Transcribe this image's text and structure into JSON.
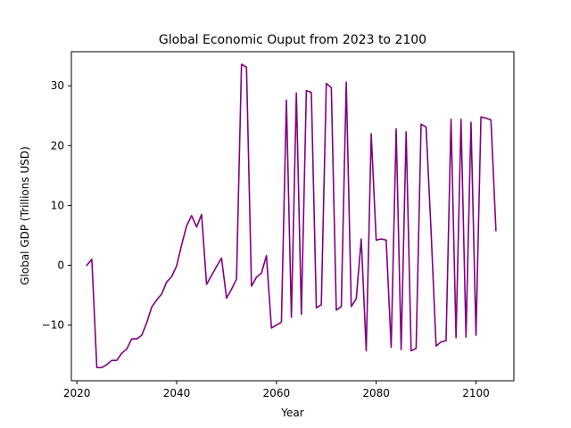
{
  "chart_data": {
    "type": "line",
    "title": "Global Economic Ouput from 2023 to 2100",
    "xlabel": "Year",
    "ylabel": "Global GDP (Trillions USD)",
    "xlim": [
      2018.9,
      2107.6
    ],
    "ylim": [
      -19.3,
      35.7
    ],
    "xticks": [
      2020,
      2040,
      2060,
      2080,
      2100
    ],
    "yticks": [
      -10,
      0,
      10,
      20,
      30
    ],
    "ytick_labels": [
      "−10",
      "0",
      "10",
      "20",
      "30"
    ],
    "grid": false,
    "series": [
      {
        "color": "#800080",
        "x": [
          2022,
          2023,
          2024,
          2025,
          2026,
          2027,
          2028,
          2029,
          2030,
          2031,
          2032,
          2033,
          2034,
          2035,
          2036,
          2037,
          2038,
          2039,
          2040,
          2041,
          2042,
          2043,
          2044,
          2045,
          2046,
          2047,
          2048,
          2049,
          2050,
          2051,
          2052,
          2053,
          2054,
          2055,
          2056,
          2057,
          2058,
          2059,
          2060,
          2061,
          2062,
          2063,
          2064,
          2065,
          2066,
          2067,
          2068,
          2069,
          2070,
          2071,
          2072,
          2073,
          2074,
          2075,
          2076,
          2077,
          2078,
          2079,
          2080,
          2081,
          2082,
          2083,
          2084,
          2085,
          2086,
          2087,
          2088,
          2089,
          2090,
          2091,
          2092,
          2093,
          2094,
          2095,
          2096,
          2097,
          2098,
          2099,
          2100,
          2101,
          2102,
          2103,
          2104
        ],
        "y": [
          0.0,
          1.0,
          -17.1,
          -17.1,
          -16.6,
          -15.9,
          -15.9,
          -14.7,
          -14.0,
          -12.3,
          -12.3,
          -11.7,
          -9.6,
          -7.0,
          -5.8,
          -4.8,
          -2.8,
          -1.9,
          -0.1,
          3.4,
          6.6,
          8.3,
          6.4,
          8.5,
          -3.2,
          -1.7,
          -0.2,
          1.2,
          -5.5,
          -4.0,
          -2.3,
          33.6,
          33.1,
          -3.5,
          -2.0,
          -1.3,
          1.6,
          -10.5,
          -10.0,
          -9.5,
          27.6,
          -8.7,
          28.8,
          -8.2,
          29.2,
          28.9,
          -7.1,
          -6.6,
          30.4,
          29.7,
          -7.5,
          -6.9,
          30.6,
          -6.9,
          -5.6,
          4.4,
          -14.3,
          22.0,
          4.2,
          4.4,
          4.2,
          -13.7,
          22.8,
          -14.1,
          22.3,
          -14.3,
          -13.9,
          23.6,
          23.1,
          5.7,
          -13.5,
          -12.8,
          -12.6,
          24.4,
          -12.1,
          24.4,
          -12.0,
          23.9,
          -11.7,
          24.8,
          24.6,
          24.3,
          5.8
        ]
      }
    ]
  }
}
